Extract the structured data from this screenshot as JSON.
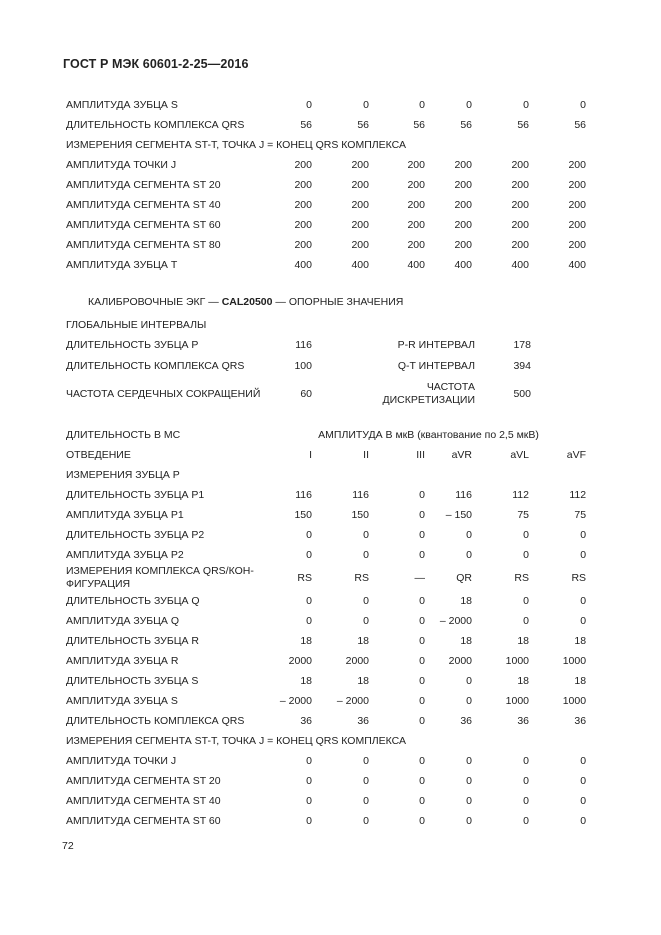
{
  "page": {
    "header": "ГОСТ Р МЭК 60601-2-25—2016",
    "page_number": "72"
  },
  "continuation_table": {
    "rows": [
      {
        "type": "data",
        "label": "АМПЛИТУДА ЗУБЦА S",
        "values": [
          "0",
          "0",
          "0",
          "0",
          "0",
          "0"
        ]
      },
      {
        "type": "data",
        "label": "ДЛИТЕЛЬНОСТЬ КОМПЛЕКСА QRS",
        "values": [
          "56",
          "56",
          "56",
          "56",
          "56",
          "56"
        ]
      },
      {
        "type": "section",
        "label": "ИЗМЕРЕНИЯ СЕГМЕНТА ST-T, ТОЧКА J = КОНЕЦ QRS КОМПЛЕКСА"
      },
      {
        "type": "data",
        "label": "АМПЛИТУДА ТОЧКИ J",
        "values": [
          "200",
          "200",
          "200",
          "200",
          "200",
          "200"
        ]
      },
      {
        "type": "data",
        "label": "АМПЛИТУДА СЕГМЕНТА ST 20",
        "values": [
          "200",
          "200",
          "200",
          "200",
          "200",
          "200"
        ]
      },
      {
        "type": "data",
        "label": "АМПЛИТУДА СЕГМЕНТА ST 40",
        "values": [
          "200",
          "200",
          "200",
          "200",
          "200",
          "200"
        ]
      },
      {
        "type": "data",
        "label": "АМПЛИТУДА СЕГМЕНТА ST 60",
        "values": [
          "200",
          "200",
          "200",
          "200",
          "200",
          "200"
        ]
      },
      {
        "type": "data",
        "label": "АМПЛИТУДА СЕГМЕНТА ST 80",
        "values": [
          "200",
          "200",
          "200",
          "200",
          "200",
          "200"
        ]
      },
      {
        "type": "data",
        "label": "АМПЛИТУДА ЗУБЦА T",
        "values": [
          "400",
          "400",
          "400",
          "400",
          "400",
          "400"
        ]
      }
    ]
  },
  "calibration_heading": {
    "prefix": "КАЛИБРОВОЧНЫЕ ЭКГ — ",
    "code": "CAL20500",
    "suffix": " — ОПОРНЫЕ ЗНАЧЕНИЯ"
  },
  "global_intervals": {
    "title": "ГЛОБАЛЬНЫЕ ИНТЕРВАЛЫ",
    "rows": [
      {
        "label": "ДЛИТЕЛЬНОСТЬ ЗУБЦА P",
        "value": "116",
        "label2": "P-R ИНТЕРВАЛ",
        "value2": "178"
      },
      {
        "label": "ДЛИТЕЛЬНОСТЬ КОМПЛЕКСА QRS",
        "value": "100",
        "label2": "Q-T ИНТЕРВАЛ",
        "value2": "394"
      },
      {
        "label": "ЧАСТОТА СЕРДЕЧНЫХ СОКРАЩЕНИЙ",
        "value": "60",
        "label2": "ЧАСТОТА\nДИСКРЕТИЗАЦИИ",
        "value2": "500"
      }
    ]
  },
  "leads_table": {
    "units_label": "ДЛИТЕЛЬНОСТЬ В МС",
    "amplitude_label": "АМПЛИТУДА В мкВ (квантование по 2,5 мкВ)",
    "lead_row_label": "ОТВЕДЕНИЕ",
    "leads": [
      "I",
      "II",
      "III",
      "aVR",
      "aVL",
      "aVF"
    ],
    "rows": [
      {
        "type": "section",
        "label": "ИЗМЕРЕНИЯ ЗУБЦА P"
      },
      {
        "type": "data",
        "label": "ДЛИТЕЛЬНОСТЬ ЗУБЦА P1",
        "values": [
          "116",
          "116",
          "0",
          "116",
          "112",
          "112"
        ]
      },
      {
        "type": "data",
        "label": "АМПЛИТУДА ЗУБЦА P1",
        "values": [
          "150",
          "150",
          "0",
          "– 150",
          "75",
          "75"
        ]
      },
      {
        "type": "data",
        "label": "ДЛИТЕЛЬНОСТЬ ЗУБЦА P2",
        "values": [
          "0",
          "0",
          "0",
          "0",
          "0",
          "0"
        ]
      },
      {
        "type": "data",
        "label": "АМПЛИТУДА ЗУБЦА P2",
        "values": [
          "0",
          "0",
          "0",
          "0",
          "0",
          "0"
        ]
      },
      {
        "type": "data",
        "twoline": true,
        "label": "ИЗМЕРЕНИЯ КОМПЛЕКСА QRS/КОН-\nФИГУРАЦИЯ",
        "values": [
          "RS",
          "RS",
          "—",
          "QR",
          "RS",
          "RS"
        ]
      },
      {
        "type": "data",
        "label": "ДЛИТЕЛЬНОСТЬ ЗУБЦА Q",
        "values": [
          "0",
          "0",
          "0",
          "18",
          "0",
          "0"
        ]
      },
      {
        "type": "data",
        "label": "АМПЛИТУДА ЗУБЦА Q",
        "values": [
          "0",
          "0",
          "0",
          "– 2000",
          "0",
          "0"
        ]
      },
      {
        "type": "data",
        "label": "ДЛИТЕЛЬНОСТЬ ЗУБЦА R",
        "values": [
          "18",
          "18",
          "0",
          "18",
          "18",
          "18"
        ]
      },
      {
        "type": "data",
        "label": "АМПЛИТУДА ЗУБЦА R",
        "values": [
          "2000",
          "2000",
          "0",
          "2000",
          "1000",
          "1000"
        ]
      },
      {
        "type": "data",
        "label": "ДЛИТЕЛЬНОСТЬ ЗУБЦА S",
        "values": [
          "18",
          "18",
          "0",
          "0",
          "18",
          "18"
        ]
      },
      {
        "type": "data",
        "label": "АМПЛИТУДА ЗУБЦА S",
        "values": [
          "– 2000",
          "– 2000",
          "0",
          "0",
          "1000",
          "1000"
        ]
      },
      {
        "type": "data",
        "label": "ДЛИТЕЛЬНОСТЬ КОМПЛЕКСА QRS",
        "values": [
          "36",
          "36",
          "0",
          "36",
          "36",
          "36"
        ]
      },
      {
        "type": "section",
        "label": "ИЗМЕРЕНИЯ СЕГМЕНТА ST-T, ТОЧКА J = КОНЕЦ QRS КОМПЛЕКСА"
      },
      {
        "type": "data",
        "label": "АМПЛИТУДА ТОЧКИ J",
        "values": [
          "0",
          "0",
          "0",
          "0",
          "0",
          "0"
        ]
      },
      {
        "type": "data",
        "label": "АМПЛИТУДА СЕГМЕНТА ST 20",
        "values": [
          "0",
          "0",
          "0",
          "0",
          "0",
          "0"
        ]
      },
      {
        "type": "data",
        "label": "АМПЛИТУДА СЕГМЕНТА ST 40",
        "values": [
          "0",
          "0",
          "0",
          "0",
          "0",
          "0"
        ]
      },
      {
        "type": "data",
        "label": "АМПЛИТУДА СЕГМЕНТА ST 60",
        "values": [
          "0",
          "0",
          "0",
          "0",
          "0",
          "0"
        ]
      }
    ]
  }
}
